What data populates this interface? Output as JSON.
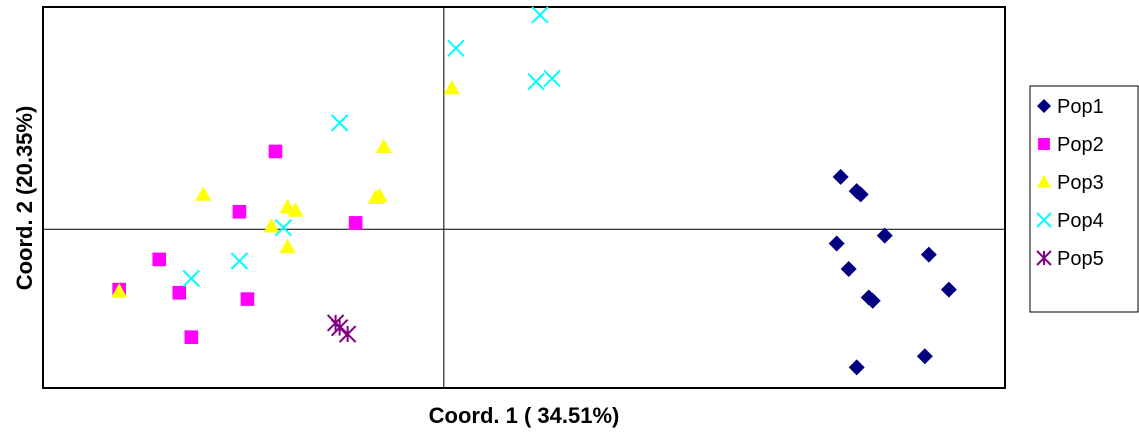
{
  "chart_data": {
    "type": "scatter",
    "title": "",
    "xlabel": "Coord. 1 ( 34.51%)",
    "ylabel": "Coord. 2  (20.35%)",
    "xlim": [
      -1.0,
      1.4
    ],
    "ylim": [
      -1.0,
      1.4
    ],
    "grid": false,
    "reference_lines": {
      "x": 0,
      "y": 0
    },
    "legend_position": "right",
    "series": [
      {
        "name": "Pop1",
        "marker": "diamond",
        "color": "#000080",
        "points": [
          [
            0.99,
            0.33
          ],
          [
            1.03,
            0.24
          ],
          [
            1.04,
            0.22
          ],
          [
            1.1,
            -0.04
          ],
          [
            1.21,
            -0.16
          ],
          [
            0.98,
            -0.09
          ],
          [
            1.01,
            -0.25
          ],
          [
            1.06,
            -0.43
          ],
          [
            1.07,
            -0.45
          ],
          [
            1.26,
            -0.38
          ],
          [
            1.2,
            -0.8
          ],
          [
            1.03,
            -0.87
          ]
        ]
      },
      {
        "name": "Pop2",
        "marker": "square",
        "color": "#ff00ff",
        "points": [
          [
            -0.42,
            0.49
          ],
          [
            -0.51,
            0.11
          ],
          [
            -0.22,
            0.04
          ],
          [
            -0.71,
            -0.19
          ],
          [
            -0.81,
            -0.38
          ],
          [
            -0.66,
            -0.4
          ],
          [
            -0.49,
            -0.44
          ],
          [
            -0.63,
            -0.68
          ]
        ]
      },
      {
        "name": "Pop3",
        "marker": "triangle",
        "color": "#ffff00",
        "points": [
          [
            0.02,
            0.89
          ],
          [
            -0.15,
            0.52
          ],
          [
            -0.6,
            0.22
          ],
          [
            -0.16,
            0.21
          ],
          [
            -0.17,
            0.2
          ],
          [
            -0.39,
            0.14
          ],
          [
            -0.37,
            0.12
          ],
          [
            -0.43,
            0.02
          ],
          [
            -0.39,
            -0.11
          ],
          [
            -0.81,
            -0.39
          ]
        ]
      },
      {
        "name": "Pop4",
        "marker": "x",
        "color": "#00ffff",
        "points": [
          [
            0.24,
            1.35
          ],
          [
            0.03,
            1.14
          ],
          [
            0.23,
            0.93
          ],
          [
            0.27,
            0.95
          ],
          [
            -0.26,
            0.67
          ],
          [
            -0.4,
            0.01
          ],
          [
            -0.51,
            -0.2
          ],
          [
            -0.63,
            -0.31
          ]
        ]
      },
      {
        "name": "Pop5",
        "marker": "asterisk",
        "color": "#800080",
        "points": [
          [
            -0.27,
            -0.59
          ],
          [
            -0.26,
            -0.62
          ],
          [
            -0.24,
            -0.66
          ]
        ]
      }
    ]
  }
}
